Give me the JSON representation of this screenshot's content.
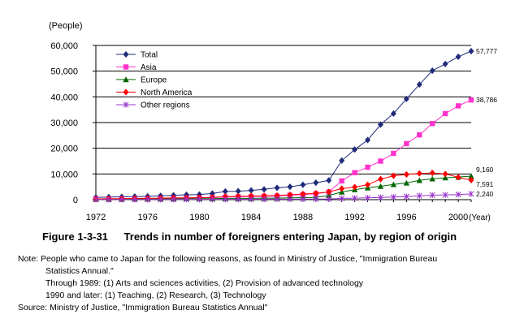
{
  "chart_data": {
    "type": "line",
    "yunit": "(People)",
    "xunit": "(Year)",
    "ylim": [
      0,
      60000
    ],
    "xlim": [
      1972,
      2001
    ],
    "yticks": [
      0,
      10000,
      20000,
      30000,
      40000,
      50000,
      60000
    ],
    "ytick_labels": [
      "0",
      "10,000",
      "20,000",
      "30,000",
      "40,000",
      "50,000",
      "60,000"
    ],
    "xticks": [
      1972,
      1976,
      1980,
      1984,
      1988,
      1992,
      1996,
      2000
    ],
    "xtick_labels": [
      "1972",
      "1976",
      "1980",
      "1984",
      "1988",
      "1992",
      "1996",
      "2000"
    ],
    "grid": "horizontal",
    "legend_placement": "top-left",
    "x": [
      1972,
      1973,
      1974,
      1975,
      1976,
      1977,
      1978,
      1979,
      1980,
      1981,
      1982,
      1983,
      1984,
      1985,
      1986,
      1987,
      1988,
      1989,
      1990,
      1991,
      1992,
      1993,
      1994,
      1995,
      1996,
      1997,
      1998,
      1999,
      2000,
      2001
    ],
    "series": [
      {
        "name": "Total",
        "color": "#1f2a7a",
        "marker": "diamond",
        "values": [
          900,
          1000,
          1100,
          1200,
          1300,
          1500,
          1700,
          1900,
          2000,
          2400,
          3200,
          3300,
          3600,
          4000,
          4600,
          5000,
          5800,
          6600,
          7500,
          15200,
          19500,
          23200,
          29200,
          33500,
          39200,
          44800,
          50200,
          52800,
          55600,
          57777
        ]
      },
      {
        "name": "Asia",
        "color": "#ff33cc",
        "marker": "square",
        "values": [
          200,
          200,
          300,
          300,
          300,
          400,
          500,
          600,
          700,
          800,
          1000,
          1100,
          1200,
          1300,
          1400,
          1700,
          2000,
          2300,
          3000,
          7300,
          10500,
          12600,
          15000,
          18000,
          21800,
          25200,
          29600,
          33500,
          36500,
          38786
        ]
      },
      {
        "name": "Europe",
        "color": "#006600",
        "marker": "triangle",
        "values": [
          200,
          200,
          200,
          300,
          300,
          300,
          300,
          400,
          400,
          400,
          500,
          500,
          500,
          600,
          600,
          700,
          800,
          900,
          1600,
          3000,
          3900,
          4600,
          5200,
          5900,
          6500,
          7500,
          8100,
          8500,
          8800,
          9160
        ]
      },
      {
        "name": "North America",
        "color": "#ff0000",
        "marker": "diamond",
        "values": [
          300,
          400,
          400,
          500,
          500,
          600,
          700,
          700,
          800,
          900,
          1200,
          1300,
          1400,
          1500,
          1600,
          1900,
          2200,
          2500,
          3000,
          4300,
          4900,
          5800,
          8000,
          9300,
          9800,
          10200,
          10400,
          10000,
          8700,
          7591
        ]
      },
      {
        "name": "Other regions",
        "color": "#9933cc",
        "marker": "asterisk",
        "values": [
          50,
          50,
          60,
          60,
          70,
          80,
          90,
          100,
          110,
          120,
          150,
          150,
          160,
          180,
          200,
          200,
          220,
          250,
          300,
          500,
          600,
          700,
          850,
          1000,
          1200,
          1500,
          1750,
          1850,
          2000,
          2240
        ]
      }
    ],
    "end_labels": [
      "57,777",
      "38,786",
      "9,160",
      "7,591",
      "2,240"
    ]
  },
  "figure": {
    "number": "Figure 1-3-31",
    "title": "Trends in number of foreigners entering Japan, by region of origin"
  },
  "notes": {
    "line1": "Note: People who came to Japan for the following reasons, as found in Ministry of Justice, \"Immigration Bureau",
    "line2": "Statistics Annual.\"",
    "line3": "Through 1989: (1) Arts and sciences activities, (2) Provision of advanced technology",
    "line4": "1990 and later: (1) Teaching, (2) Research, (3) Technology",
    "source": "Source: Ministry of Justice, \"Immigration Bureau Statistics Annual\""
  }
}
